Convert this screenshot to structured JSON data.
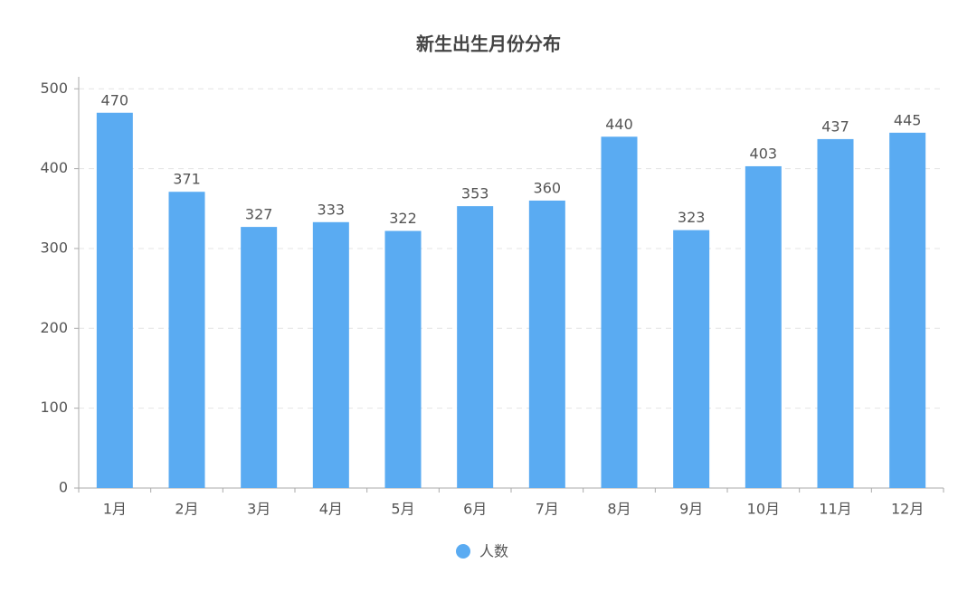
{
  "chart_data": {
    "type": "bar",
    "title": "新生出生月份分布",
    "categories": [
      "1月",
      "2月",
      "3月",
      "4月",
      "5月",
      "6月",
      "7月",
      "8月",
      "9月",
      "10月",
      "11月",
      "12月"
    ],
    "series": [
      {
        "name": "人数",
        "color": "#5aabf2",
        "values": [
          470,
          371,
          327,
          333,
          322,
          353,
          360,
          440,
          323,
          403,
          437,
          445
        ]
      }
    ],
    "ylim": [
      0,
      515
    ],
    "yticks": [
      0,
      100,
      200,
      300,
      400,
      500
    ],
    "grid": true,
    "legend": "bottom"
  }
}
